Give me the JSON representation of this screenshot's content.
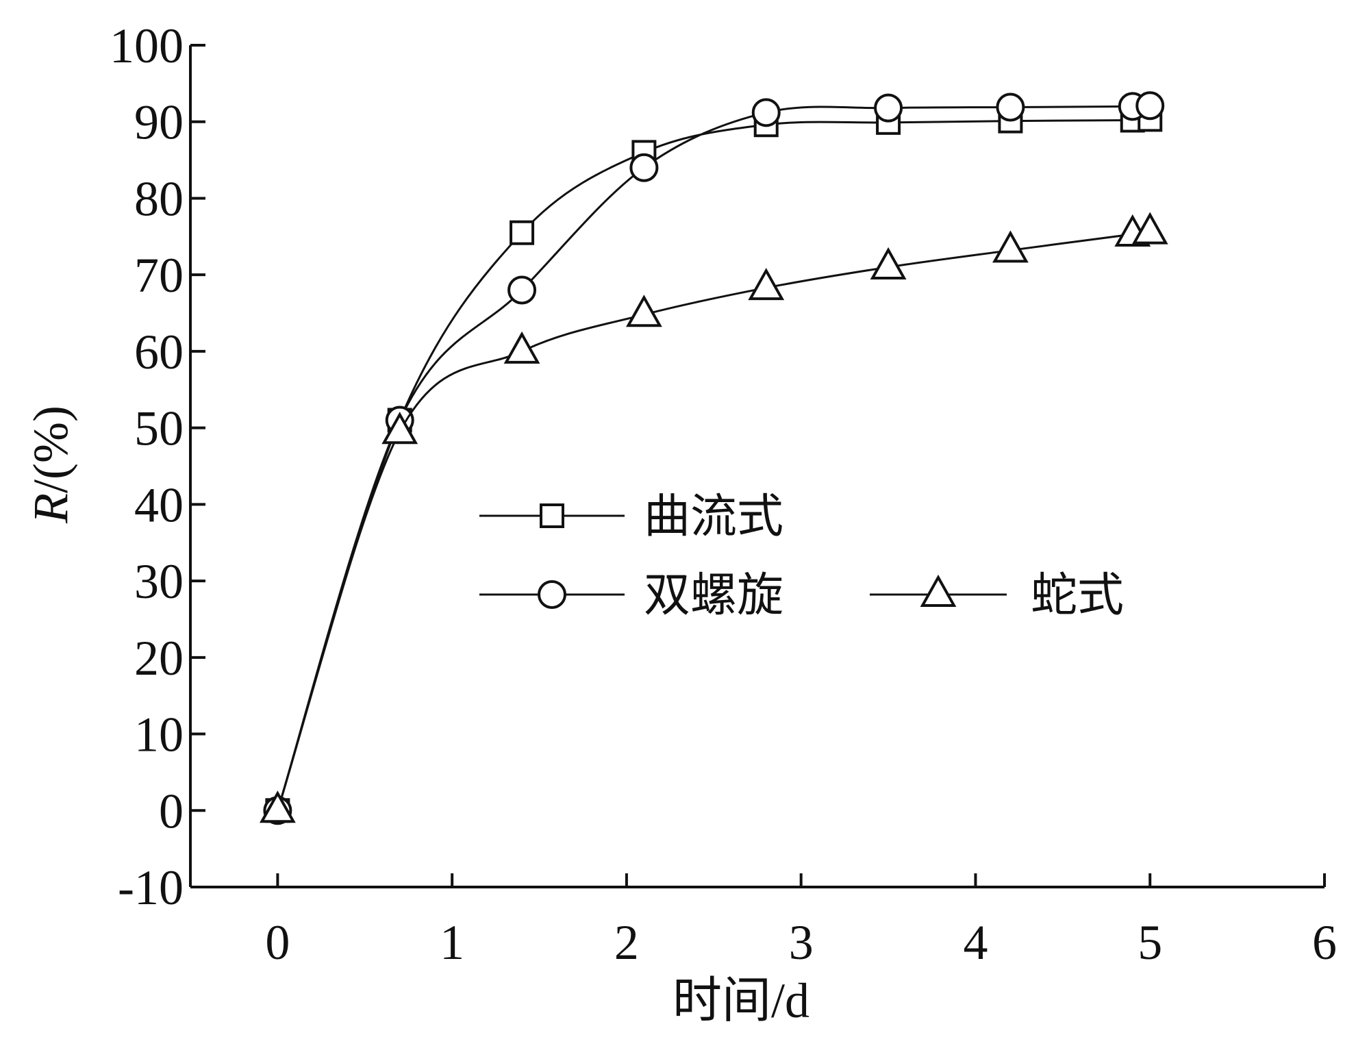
{
  "chart_data": {
    "type": "line",
    "xlabel": "时间/d",
    "ylabel": "R/(%)",
    "xlim": [
      -0.5,
      6
    ],
    "ylim": [
      -10,
      100
    ],
    "xticks": [
      0,
      1,
      2,
      3,
      4,
      5,
      6
    ],
    "yticks": [
      -10,
      0,
      10,
      20,
      30,
      40,
      50,
      60,
      70,
      80,
      90,
      100
    ],
    "grid": false,
    "legend_position": "center-right",
    "series": [
      {
        "name": "曲流式",
        "marker": "square",
        "x": [
          0,
          0.7,
          1.4,
          2.1,
          2.8,
          3.5,
          4.2,
          4.9,
          5.0
        ],
        "y": [
          0,
          51,
          75.5,
          86,
          89.6,
          89.9,
          90.1,
          90.2,
          90.3
        ]
      },
      {
        "name": "双螺旋",
        "marker": "circle",
        "x": [
          0,
          0.7,
          1.4,
          2.1,
          2.8,
          3.5,
          4.2,
          4.9,
          5.0
        ],
        "y": [
          0,
          51,
          68,
          84,
          91.2,
          91.8,
          91.9,
          92.0,
          92.1
        ]
      },
      {
        "name": "蛇式",
        "marker": "triangle",
        "x": [
          0,
          0.7,
          1.4,
          2.1,
          2.8,
          3.5,
          4.2,
          4.9,
          5.0
        ],
        "y": [
          0,
          49.5,
          60,
          64.8,
          68.3,
          71,
          73.2,
          75.3,
          75.6
        ]
      }
    ]
  }
}
